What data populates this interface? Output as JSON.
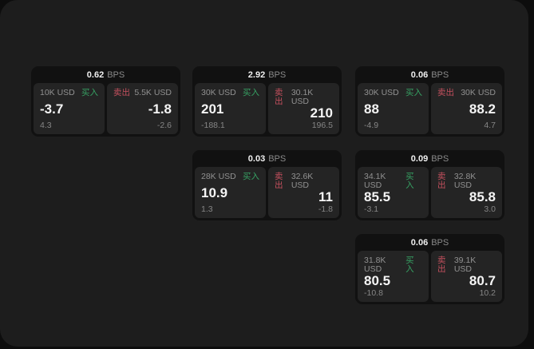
{
  "app": {
    "unit_label": "BPS",
    "buy_label": "买入",
    "sell_label": "卖出",
    "colors": {
      "background": "#0d0d0d",
      "panel": "#1d1d1d",
      "card": "#111111",
      "subpanel": "#242424",
      "buy_green": "#36a163",
      "sell_red": "#c4505e",
      "text_primary": "#f5f5f5",
      "text_muted": "#8a8a8a"
    }
  },
  "cards": [
    {
      "bps": "0.62",
      "buy": {
        "amount": "10K USD",
        "price": "-3.7",
        "delta": "4.3"
      },
      "sell": {
        "amount": "5.5K USD",
        "price": "-1.8",
        "delta": "-2.6"
      }
    },
    {
      "bps": "2.92",
      "buy": {
        "amount": "30K USD",
        "price": "201",
        "delta": "-188.1"
      },
      "sell": {
        "amount": "30.1K USD",
        "price": "210",
        "delta": "196.5"
      }
    },
    {
      "bps": "0.03",
      "buy": {
        "amount": "28K USD",
        "price": "10.9",
        "delta": "1.3"
      },
      "sell": {
        "amount": "32.6K USD",
        "price": "11",
        "delta": "-1.8"
      }
    },
    {
      "bps": "0.06",
      "buy": {
        "amount": "30K USD",
        "price": "88",
        "delta": "-4.9"
      },
      "sell": {
        "amount": "30K USD",
        "price": "88.2",
        "delta": "4.7"
      }
    },
    {
      "bps": "0.09",
      "buy": {
        "amount": "34.1K USD",
        "price": "85.5",
        "delta": "-3.1"
      },
      "sell": {
        "amount": "32.8K USD",
        "price": "85.8",
        "delta": "3.0"
      }
    },
    {
      "bps": "0.06",
      "buy": {
        "amount": "31.8K USD",
        "price": "80.5",
        "delta": "-10.8"
      },
      "sell": {
        "amount": "39.1K USD",
        "price": "80.7",
        "delta": "10.2"
      }
    }
  ]
}
